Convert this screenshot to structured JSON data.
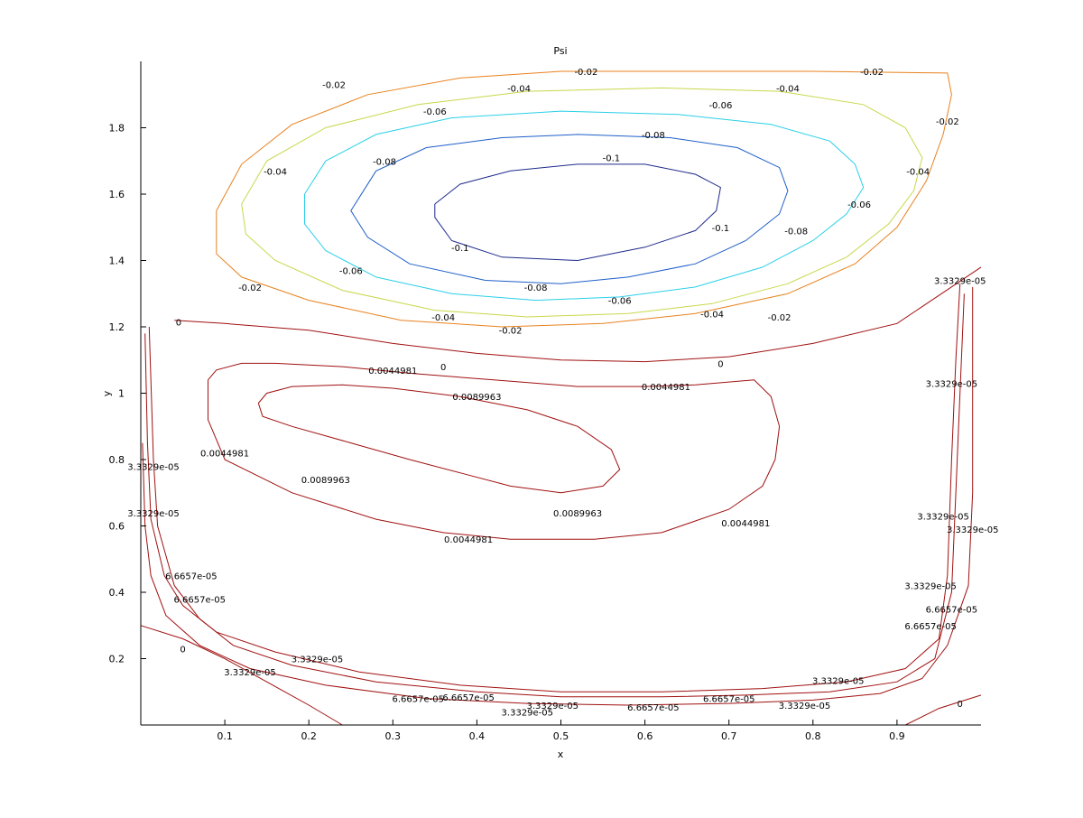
{
  "chart_data": {
    "type": "contour",
    "title": "Psi",
    "xlabel": "x",
    "ylabel": "y",
    "xlim": [
      0,
      1
    ],
    "ylim": [
      0,
      2
    ],
    "x_ticks": [
      "0.1",
      "0.2",
      "0.3",
      "0.4",
      "0.5",
      "0.6",
      "0.7",
      "0.8",
      "0.9"
    ],
    "y_ticks": [
      "0.2",
      "0.4",
      "0.6",
      "0.8",
      "1",
      "1.2",
      "1.4",
      "1.6",
      "1.8"
    ],
    "grid": false,
    "colors": {
      "-0.1": "#1e2a8c",
      "-0.08": "#1f5fc8",
      "-0.06": "#2ad0e8",
      "-0.04": "#c8d84a",
      "-0.02": "#e8821e",
      "positive": "#a01010"
    },
    "contours": [
      {
        "level": "-0.1",
        "points": [
          [
            0.35,
            1.57
          ],
          [
            0.38,
            1.63
          ],
          [
            0.44,
            1.67
          ],
          [
            0.52,
            1.69
          ],
          [
            0.6,
            1.69
          ],
          [
            0.66,
            1.66
          ],
          [
            0.69,
            1.62
          ],
          [
            0.685,
            1.55
          ],
          [
            0.66,
            1.49
          ],
          [
            0.6,
            1.44
          ],
          [
            0.52,
            1.4
          ],
          [
            0.43,
            1.41
          ],
          [
            0.37,
            1.46
          ],
          [
            0.35,
            1.53
          ],
          [
            0.35,
            1.57
          ]
        ]
      },
      {
        "level": "-0.08",
        "points": [
          [
            0.26,
            1.59
          ],
          [
            0.28,
            1.67
          ],
          [
            0.34,
            1.74
          ],
          [
            0.43,
            1.77
          ],
          [
            0.52,
            1.78
          ],
          [
            0.63,
            1.77
          ],
          [
            0.71,
            1.74
          ],
          [
            0.76,
            1.68
          ],
          [
            0.77,
            1.61
          ],
          [
            0.76,
            1.54
          ],
          [
            0.72,
            1.46
          ],
          [
            0.66,
            1.39
          ],
          [
            0.58,
            1.35
          ],
          [
            0.5,
            1.33
          ],
          [
            0.41,
            1.34
          ],
          [
            0.32,
            1.39
          ],
          [
            0.27,
            1.47
          ],
          [
            0.25,
            1.55
          ],
          [
            0.26,
            1.59
          ]
        ]
      },
      {
        "level": "-0.06",
        "points": [
          [
            0.195,
            1.6
          ],
          [
            0.22,
            1.7
          ],
          [
            0.28,
            1.78
          ],
          [
            0.37,
            1.83
          ],
          [
            0.5,
            1.85
          ],
          [
            0.64,
            1.84
          ],
          [
            0.75,
            1.81
          ],
          [
            0.82,
            1.76
          ],
          [
            0.85,
            1.69
          ],
          [
            0.86,
            1.62
          ],
          [
            0.84,
            1.54
          ],
          [
            0.8,
            1.46
          ],
          [
            0.74,
            1.38
          ],
          [
            0.66,
            1.32
          ],
          [
            0.57,
            1.29
          ],
          [
            0.47,
            1.28
          ],
          [
            0.37,
            1.3
          ],
          [
            0.28,
            1.35
          ],
          [
            0.22,
            1.43
          ],
          [
            0.195,
            1.51
          ],
          [
            0.195,
            1.6
          ]
        ]
      },
      {
        "level": "-0.04",
        "points": [
          [
            0.12,
            1.57
          ],
          [
            0.15,
            1.7
          ],
          [
            0.22,
            1.8
          ],
          [
            0.33,
            1.87
          ],
          [
            0.46,
            1.91
          ],
          [
            0.62,
            1.92
          ],
          [
            0.76,
            1.91
          ],
          [
            0.86,
            1.87
          ],
          [
            0.91,
            1.8
          ],
          [
            0.93,
            1.71
          ],
          [
            0.92,
            1.61
          ],
          [
            0.89,
            1.51
          ],
          [
            0.84,
            1.41
          ],
          [
            0.77,
            1.33
          ],
          [
            0.68,
            1.27
          ],
          [
            0.58,
            1.24
          ],
          [
            0.46,
            1.23
          ],
          [
            0.35,
            1.25
          ],
          [
            0.24,
            1.31
          ],
          [
            0.16,
            1.4
          ],
          [
            0.125,
            1.48
          ],
          [
            0.12,
            1.57
          ]
        ]
      },
      {
        "level": "-0.02",
        "points": [
          [
            0.09,
            1.42
          ],
          [
            0.09,
            1.55
          ],
          [
            0.12,
            1.69
          ],
          [
            0.18,
            1.81
          ],
          [
            0.27,
            1.9
          ],
          [
            0.38,
            1.95
          ],
          [
            0.5,
            1.97
          ],
          [
            0.62,
            1.97
          ],
          [
            0.8,
            1.97
          ],
          [
            0.96,
            1.965
          ],
          [
            0.965,
            1.9
          ],
          [
            0.955,
            1.78
          ],
          [
            0.935,
            1.64
          ],
          [
            0.9,
            1.5
          ],
          [
            0.85,
            1.39
          ],
          [
            0.77,
            1.3
          ],
          [
            0.66,
            1.24
          ],
          [
            0.55,
            1.21
          ],
          [
            0.43,
            1.2
          ],
          [
            0.31,
            1.22
          ],
          [
            0.2,
            1.28
          ],
          [
            0.12,
            1.35
          ],
          [
            0.09,
            1.42
          ]
        ]
      },
      {
        "level": "0",
        "points": [
          [
            0.04,
            1.22
          ],
          [
            0.1,
            1.21
          ],
          [
            0.2,
            1.19
          ],
          [
            0.3,
            1.15
          ],
          [
            0.4,
            1.12
          ],
          [
            0.5,
            1.1
          ],
          [
            0.6,
            1.095
          ],
          [
            0.7,
            1.11
          ],
          [
            0.8,
            1.15
          ],
          [
            0.9,
            1.21
          ],
          [
            1.0,
            1.38
          ]
        ]
      },
      {
        "level": "0",
        "points": [
          [
            0.0,
            0.3
          ],
          [
            0.05,
            0.26
          ],
          [
            0.1,
            0.2
          ],
          [
            0.15,
            0.13
          ],
          [
            0.2,
            0.06
          ],
          [
            0.24,
            0.0
          ]
        ]
      },
      {
        "level": "0",
        "points": [
          [
            0.91,
            0.0
          ],
          [
            0.95,
            0.05
          ],
          [
            1.0,
            0.09
          ]
        ]
      },
      {
        "level": "0.0044981",
        "points": [
          [
            0.08,
            1.04
          ],
          [
            0.09,
            1.07
          ],
          [
            0.12,
            1.09
          ],
          [
            0.16,
            1.09
          ],
          [
            0.24,
            1.08
          ],
          [
            0.32,
            1.06
          ],
          [
            0.42,
            1.04
          ],
          [
            0.52,
            1.02
          ],
          [
            0.6,
            1.02
          ],
          [
            0.66,
            1.025
          ],
          [
            0.73,
            1.04
          ],
          [
            0.75,
            0.99
          ],
          [
            0.76,
            0.9
          ],
          [
            0.755,
            0.8
          ],
          [
            0.74,
            0.72
          ],
          [
            0.7,
            0.65
          ],
          [
            0.62,
            0.58
          ],
          [
            0.54,
            0.56
          ],
          [
            0.44,
            0.56
          ],
          [
            0.36,
            0.58
          ],
          [
            0.28,
            0.62
          ],
          [
            0.18,
            0.7
          ],
          [
            0.1,
            0.8
          ],
          [
            0.08,
            0.92
          ],
          [
            0.08,
            1.04
          ]
        ]
      },
      {
        "level": "0.0089963",
        "points": [
          [
            0.14,
            0.97
          ],
          [
            0.15,
            1.0
          ],
          [
            0.18,
            1.02
          ],
          [
            0.24,
            1.025
          ],
          [
            0.3,
            1.015
          ],
          [
            0.38,
            0.99
          ],
          [
            0.46,
            0.95
          ],
          [
            0.52,
            0.9
          ],
          [
            0.56,
            0.83
          ],
          [
            0.57,
            0.77
          ],
          [
            0.55,
            0.72
          ],
          [
            0.5,
            0.7
          ],
          [
            0.44,
            0.72
          ],
          [
            0.38,
            0.76
          ],
          [
            0.32,
            0.8
          ],
          [
            0.25,
            0.85
          ],
          [
            0.18,
            0.9
          ],
          [
            0.145,
            0.93
          ],
          [
            0.14,
            0.97
          ]
        ]
      },
      {
        "level": "3.3329e-05",
        "points": [
          [
            0.01,
            1.2
          ],
          [
            0.015,
            0.8
          ],
          [
            0.02,
            0.6
          ],
          [
            0.04,
            0.42
          ],
          [
            0.07,
            0.32
          ],
          [
            0.11,
            0.24
          ],
          [
            0.18,
            0.18
          ],
          [
            0.28,
            0.13
          ],
          [
            0.4,
            0.1
          ],
          [
            0.5,
            0.085
          ],
          [
            0.62,
            0.085
          ],
          [
            0.72,
            0.09
          ],
          [
            0.82,
            0.1
          ],
          [
            0.9,
            0.13
          ],
          [
            0.945,
            0.2
          ],
          [
            0.965,
            0.4
          ],
          [
            0.97,
            0.7
          ],
          [
            0.975,
            1.0
          ],
          [
            0.98,
            1.3
          ]
        ]
      },
      {
        "level": "6.6657e-05",
        "points": [
          [
            0.005,
            1.18
          ],
          [
            0.008,
            0.85
          ],
          [
            0.012,
            0.62
          ],
          [
            0.028,
            0.45
          ],
          [
            0.05,
            0.36
          ],
          [
            0.09,
            0.28
          ],
          [
            0.16,
            0.22
          ],
          [
            0.26,
            0.16
          ],
          [
            0.38,
            0.12
          ],
          [
            0.5,
            0.1
          ],
          [
            0.62,
            0.1
          ],
          [
            0.74,
            0.11
          ],
          [
            0.84,
            0.13
          ],
          [
            0.91,
            0.17
          ],
          [
            0.95,
            0.26
          ],
          [
            0.96,
            0.45
          ],
          [
            0.965,
            0.8
          ],
          [
            0.97,
            1.1
          ],
          [
            0.975,
            1.33
          ]
        ]
      },
      {
        "level": "3.3329e-05",
        "points": [
          [
            0.002,
            0.85
          ],
          [
            0.005,
            0.6
          ],
          [
            0.012,
            0.45
          ],
          [
            0.03,
            0.33
          ],
          [
            0.07,
            0.24
          ],
          [
            0.13,
            0.17
          ],
          [
            0.22,
            0.12
          ],
          [
            0.34,
            0.08
          ],
          [
            0.46,
            0.065
          ],
          [
            0.58,
            0.06
          ],
          [
            0.7,
            0.065
          ],
          [
            0.8,
            0.075
          ],
          [
            0.88,
            0.095
          ],
          [
            0.93,
            0.14
          ],
          [
            0.96,
            0.24
          ],
          [
            0.985,
            0.42
          ],
          [
            0.99,
            0.7
          ],
          [
            0.99,
            1.0
          ],
          [
            0.99,
            1.32
          ]
        ]
      }
    ],
    "labels": [
      {
        "text": "-0.02",
        "x": 0.53,
        "y": 1.97
      },
      {
        "text": "-0.02",
        "x": 0.87,
        "y": 1.97
      },
      {
        "text": "-0.02",
        "x": 0.23,
        "y": 1.93
      },
      {
        "text": "-0.02",
        "x": 0.96,
        "y": 1.82
      },
      {
        "text": "-0.02",
        "x": 0.13,
        "y": 1.32
      },
      {
        "text": "-0.02",
        "x": 0.76,
        "y": 1.23
      },
      {
        "text": "-0.02",
        "x": 0.44,
        "y": 1.19
      },
      {
        "text": "-0.04",
        "x": 0.45,
        "y": 1.92
      },
      {
        "text": "-0.04",
        "x": 0.77,
        "y": 1.92
      },
      {
        "text": "-0.04",
        "x": 0.16,
        "y": 1.67
      },
      {
        "text": "-0.04",
        "x": 0.925,
        "y": 1.67
      },
      {
        "text": "-0.04",
        "x": 0.36,
        "y": 1.23
      },
      {
        "text": "-0.04",
        "x": 0.68,
        "y": 1.24
      },
      {
        "text": "-0.06",
        "x": 0.35,
        "y": 1.85
      },
      {
        "text": "-0.06",
        "x": 0.69,
        "y": 1.87
      },
      {
        "text": "-0.06",
        "x": 0.855,
        "y": 1.57
      },
      {
        "text": "-0.06",
        "x": 0.25,
        "y": 1.37
      },
      {
        "text": "-0.06",
        "x": 0.57,
        "y": 1.28
      },
      {
        "text": "-0.08",
        "x": 0.61,
        "y": 1.78
      },
      {
        "text": "-0.08",
        "x": 0.29,
        "y": 1.7
      },
      {
        "text": "-0.08",
        "x": 0.78,
        "y": 1.49
      },
      {
        "text": "-0.08",
        "x": 0.47,
        "y": 1.32
      },
      {
        "text": "-0.1",
        "x": 0.56,
        "y": 1.71
      },
      {
        "text": "-0.1",
        "x": 0.69,
        "y": 1.5
      },
      {
        "text": "-0.1",
        "x": 0.38,
        "y": 1.44
      },
      {
        "text": "0",
        "x": 0.045,
        "y": 1.215
      },
      {
        "text": "0",
        "x": 0.36,
        "y": 1.08
      },
      {
        "text": "0",
        "x": 0.69,
        "y": 1.09
      },
      {
        "text": "0",
        "x": 0.05,
        "y": 0.23
      },
      {
        "text": "0",
        "x": 0.975,
        "y": 0.065
      },
      {
        "text": "0.0044981",
        "x": 0.3,
        "y": 1.07
      },
      {
        "text": "0.0044981",
        "x": 0.625,
        "y": 1.02
      },
      {
        "text": "0.0044981",
        "x": 0.1,
        "y": 0.82
      },
      {
        "text": "0.0044981",
        "x": 0.72,
        "y": 0.61
      },
      {
        "text": "0.0044981",
        "x": 0.39,
        "y": 0.56
      },
      {
        "text": "0.0089963",
        "x": 0.4,
        "y": 0.99
      },
      {
        "text": "0.0089963",
        "x": 0.22,
        "y": 0.74
      },
      {
        "text": "0.0089963",
        "x": 0.52,
        "y": 0.64
      },
      {
        "text": "3.3329e-05",
        "x": 0.975,
        "y": 1.34
      },
      {
        "text": "3.3329e-05",
        "x": 0.965,
        "y": 1.03
      },
      {
        "text": "3.3329e-05",
        "x": 0.955,
        "y": 0.63
      },
      {
        "text": "3.3329e-05",
        "x": 0.99,
        "y": 0.59
      },
      {
        "text": "3.3329e-05",
        "x": 0.015,
        "y": 0.78
      },
      {
        "text": "3.3329e-05",
        "x": 0.015,
        "y": 0.64
      },
      {
        "text": "3.3329e-05",
        "x": 0.21,
        "y": 0.2
      },
      {
        "text": "3.3329e-05",
        "x": 0.13,
        "y": 0.16
      },
      {
        "text": "3.3329e-05",
        "x": 0.49,
        "y": 0.06
      },
      {
        "text": "3.3329e-05",
        "x": 0.46,
        "y": 0.04
      },
      {
        "text": "3.3329e-05",
        "x": 0.83,
        "y": 0.135
      },
      {
        "text": "3.3329e-05",
        "x": 0.79,
        "y": 0.06
      },
      {
        "text": "3.3329e-05",
        "x": 0.94,
        "y": 0.42
      },
      {
        "text": "6.6657e-05",
        "x": 0.06,
        "y": 0.45
      },
      {
        "text": "6.6657e-05",
        "x": 0.07,
        "y": 0.38
      },
      {
        "text": "6.6657e-05",
        "x": 0.33,
        "y": 0.08
      },
      {
        "text": "6.6657e-05",
        "x": 0.39,
        "y": 0.085
      },
      {
        "text": "6.6657e-05",
        "x": 0.61,
        "y": 0.055
      },
      {
        "text": "6.6657e-05",
        "x": 0.7,
        "y": 0.08
      },
      {
        "text": "6.6657e-05",
        "x": 0.94,
        "y": 0.3
      },
      {
        "text": "6.6657e-05",
        "x": 0.965,
        "y": 0.35
      }
    ]
  }
}
